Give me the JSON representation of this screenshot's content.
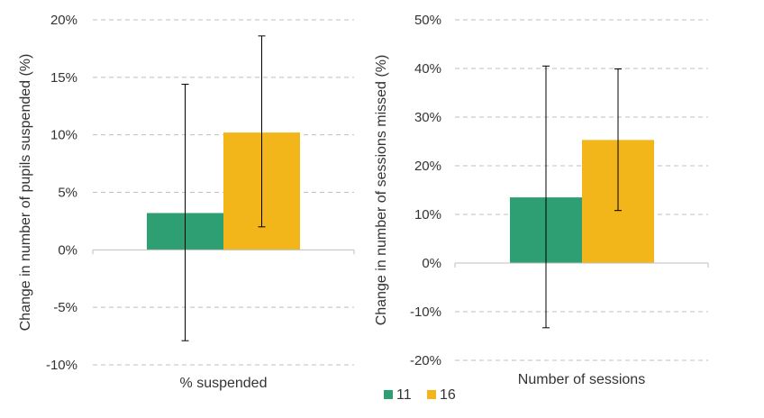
{
  "chart_data": [
    {
      "type": "bar",
      "categories": [
        "% suspended"
      ],
      "series": [
        {
          "name": "11",
          "values": [
            3.2
          ],
          "error_low": [
            -7.9
          ],
          "error_high": [
            14.4
          ]
        },
        {
          "name": "16",
          "values": [
            10.2
          ],
          "error_low": [
            2.0
          ],
          "error_high": [
            18.6
          ]
        }
      ],
      "xlabel": "% suspended",
      "ylabel": "Change in number of pupils suspended (%)",
      "ylim": [
        -10,
        20
      ],
      "yticks": [
        "-10%",
        "-5%",
        "0%",
        "5%",
        "10%",
        "15%",
        "20%"
      ],
      "grid": true
    },
    {
      "type": "bar",
      "categories": [
        "Number of sessions"
      ],
      "series": [
        {
          "name": "11",
          "values": [
            13.5
          ],
          "error_low": [
            -13.3
          ],
          "error_high": [
            40.5
          ]
        },
        {
          "name": "16",
          "values": [
            25.3
          ],
          "error_low": [
            10.8
          ],
          "error_high": [
            39.9
          ]
        }
      ],
      "xlabel": "Number of sessions",
      "ylabel": "Change in number of sessions missed (%)",
      "ylim": [
        -20,
        50
      ],
      "yticks": [
        "-20%",
        "-10%",
        "0%",
        "10%",
        "20%",
        "30%",
        "40%",
        "50%"
      ],
      "grid": true
    }
  ],
  "legend": {
    "placement": "bottom-center",
    "items": [
      {
        "label": "11",
        "color": "#2e9e73"
      },
      {
        "label": "16",
        "color": "#f2b51a"
      }
    ]
  },
  "colors": {
    "series_11": "#2e9e73",
    "series_16": "#f2b51a",
    "grid": "#bfbfbf",
    "axis": "#bfbfbf",
    "error_bar": "#000000"
  }
}
